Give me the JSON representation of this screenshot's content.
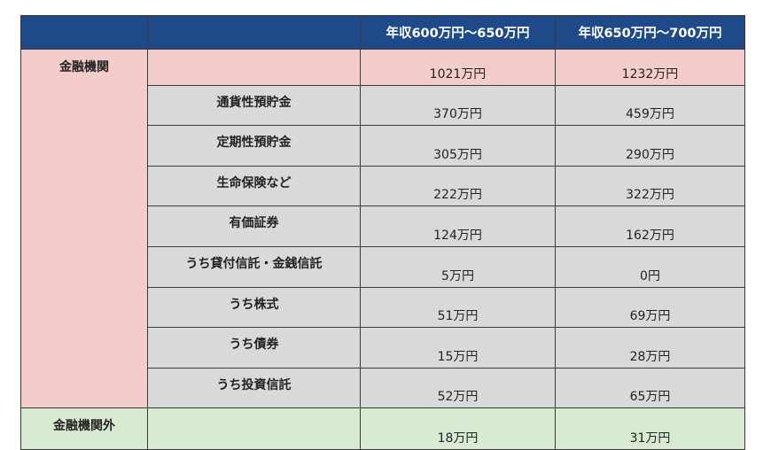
{
  "header": {
    "col1": "",
    "col2": "",
    "col3": "年収600万円〜650万円",
    "col4": "年収650万円〜700万円"
  },
  "colors": {
    "header": "#1f4a8a",
    "financial": "#f4cccc",
    "sub": "#d9d9d9",
    "non_financial": "#d9ead3"
  },
  "financial": {
    "label": "金融機関",
    "total": {
      "a": "1021万円",
      "b": "1232万円"
    },
    "items": [
      {
        "label": "通貨性預貯金",
        "a": "370万円",
        "b": "459万円"
      },
      {
        "label": "定期性預貯金",
        "a": "305万円",
        "b": "290万円"
      },
      {
        "label": "生命保険など",
        "a": "222万円",
        "b": "322万円"
      },
      {
        "label": "有価証券",
        "a": "124万円",
        "b": "162万円"
      },
      {
        "label": "うち貸付信託・金銭信託",
        "a": "5万円",
        "b": "0円"
      },
      {
        "label": "うち株式",
        "a": "51万円",
        "b": "69万円"
      },
      {
        "label": "うち債券",
        "a": "15万円",
        "b": "28万円"
      },
      {
        "label": "うち投資信託",
        "a": "52万円",
        "b": "65万円"
      }
    ]
  },
  "non_financial": {
    "label": "金融機関外",
    "a": "18万円",
    "b": "31万円"
  }
}
